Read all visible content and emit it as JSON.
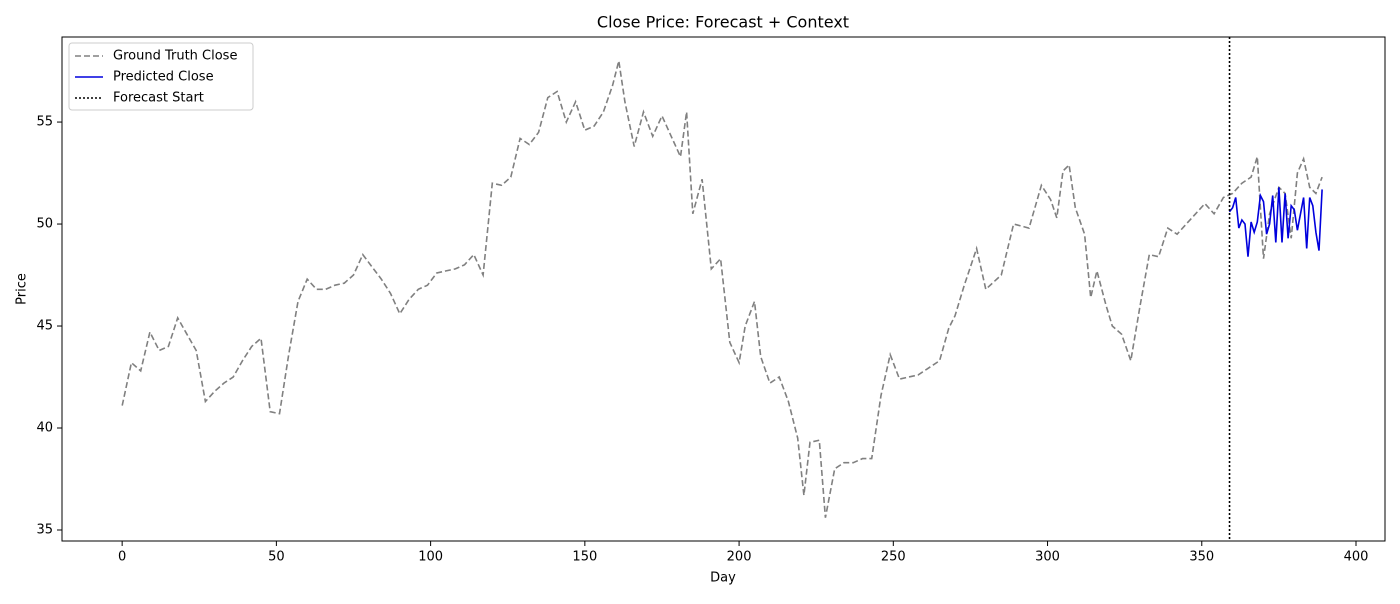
{
  "chart_data": {
    "type": "line",
    "title": "Close Price: Forecast + Context",
    "x_label": "Day",
    "y_label": "Price",
    "xlim": [
      -19.5,
      409.4
    ],
    "ylim": [
      34.46,
      59.17
    ],
    "xticks": [
      0,
      50,
      100,
      150,
      200,
      250,
      300,
      350,
      400
    ],
    "yticks": [
      35,
      40,
      45,
      50,
      55
    ],
    "legend_position": "upper left",
    "series": [
      {
        "name": "Ground Truth Close",
        "color": "#808080",
        "dash": "dashed",
        "x": [
          0,
          3,
          6,
          9,
          12,
          15,
          18,
          21,
          24,
          27,
          30,
          33,
          36,
          39,
          42,
          45,
          48,
          51,
          54,
          57,
          60,
          63,
          66,
          69,
          72,
          75,
          78,
          81,
          84,
          87,
          90,
          93,
          96,
          99,
          102,
          105,
          108,
          111,
          114,
          117,
          120,
          123,
          126,
          129,
          132,
          135,
          138,
          141,
          144,
          147,
          150,
          153,
          156,
          159,
          161,
          163,
          166,
          169,
          172,
          175,
          178,
          181,
          183,
          185,
          188,
          191,
          194,
          197,
          200,
          202,
          205,
          207,
          210,
          213,
          216,
          219,
          221,
          223,
          226,
          228,
          231,
          234,
          237,
          240,
          243,
          246,
          249,
          252,
          255,
          258,
          261,
          265,
          268,
          270,
          273,
          277,
          280,
          285,
          289,
          294,
          298,
          301,
          303,
          305,
          307,
          309,
          312,
          314,
          316,
          319,
          321,
          324,
          327,
          330,
          333,
          336,
          339,
          342,
          345,
          348,
          351,
          354,
          357,
          360,
          363,
          366,
          368,
          370,
          372,
          375,
          377,
          379,
          381,
          383,
          385,
          387,
          389
        ],
        "values": [
          41.1,
          43.2,
          42.8,
          44.7,
          43.8,
          44.0,
          45.4,
          44.6,
          43.8,
          41.3,
          41.8,
          42.2,
          42.5,
          43.3,
          44.0,
          44.4,
          40.8,
          40.7,
          43.6,
          46.2,
          47.3,
          46.8,
          46.8,
          47.0,
          47.1,
          47.5,
          48.5,
          47.9,
          47.3,
          46.6,
          45.6,
          46.3,
          46.8,
          47.0,
          47.6,
          47.7,
          47.8,
          48.0,
          48.5,
          47.5,
          52.0,
          51.9,
          52.3,
          54.2,
          53.9,
          54.5,
          56.2,
          56.5,
          55.0,
          56.0,
          54.6,
          54.8,
          55.5,
          56.8,
          58.0,
          56.0,
          53.8,
          55.5,
          54.3,
          55.3,
          54.3,
          53.3,
          55.5,
          50.5,
          52.2,
          47.8,
          48.3,
          44.2,
          43.2,
          45.0,
          46.2,
          43.5,
          42.2,
          42.5,
          41.3,
          39.5,
          36.7,
          39.3,
          39.4,
          35.6,
          38.0,
          38.3,
          38.3,
          38.5,
          38.5,
          41.6,
          43.6,
          42.4,
          42.5,
          42.6,
          42.9,
          43.3,
          44.9,
          45.5,
          47.0,
          48.8,
          46.8,
          47.5,
          50.0,
          49.8,
          51.9,
          51.2,
          50.3,
          52.6,
          52.9,
          50.8,
          49.5,
          46.4,
          47.7,
          46.0,
          45.0,
          44.6,
          43.3,
          46.0,
          48.5,
          48.4,
          49.8,
          49.5,
          50.0,
          50.5,
          51.0,
          50.5,
          51.3,
          51.5,
          52.0,
          52.3,
          53.3,
          48.3,
          50.5,
          51.8,
          51.5,
          49.3,
          52.5,
          53.2,
          51.8,
          51.5,
          52.3
        ]
      },
      {
        "name": "Predicted Close",
        "color": "#0000dd",
        "dash": "solid",
        "x": [
          359,
          360,
          361,
          362,
          363,
          364,
          365,
          366,
          367,
          368,
          369,
          370,
          371,
          372,
          373,
          374,
          375,
          376,
          377,
          378,
          379,
          380,
          381,
          382,
          383,
          384,
          385,
          386,
          387,
          388,
          389
        ],
        "values": [
          50.6,
          50.8,
          51.3,
          49.8,
          50.2,
          50.0,
          48.4,
          50.1,
          49.6,
          50.1,
          51.4,
          51.1,
          49.5,
          50.0,
          51.4,
          49.1,
          51.8,
          49.1,
          51.5,
          49.3,
          50.9,
          50.7,
          49.7,
          50.5,
          51.3,
          48.8,
          51.3,
          50.9,
          49.6,
          48.7,
          51.7
        ]
      },
      {
        "name": "Forecast Start",
        "color": "#000000",
        "dash": "dotted",
        "vline": 359
      }
    ]
  }
}
